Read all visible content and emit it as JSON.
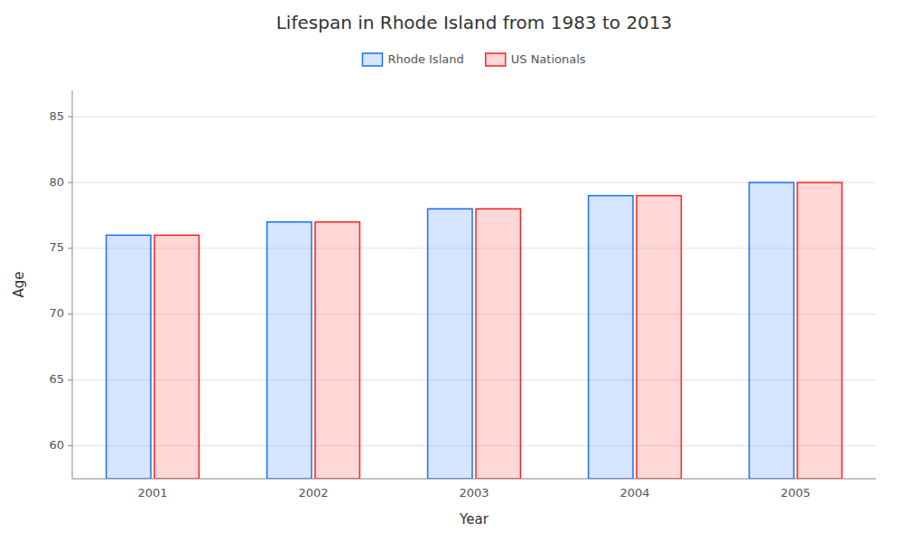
{
  "chart_data": {
    "type": "bar",
    "title": "Lifespan in Rhode Island from 1983 to 2013",
    "xlabel": "Year",
    "ylabel": "Age",
    "categories": [
      "2001",
      "2002",
      "2003",
      "2004",
      "2005"
    ],
    "series": [
      {
        "name": "Rhode Island",
        "color": "#1a6eff",
        "values": [
          76,
          77,
          78,
          79,
          80
        ]
      },
      {
        "name": "US Nationals",
        "color": "#ff2020",
        "values": [
          76,
          77,
          78,
          79,
          80
        ]
      }
    ],
    "ylim": [
      57.5,
      87
    ],
    "yticks": [
      60,
      65,
      70,
      75,
      80,
      85
    ],
    "grid": true,
    "legend": "top"
  }
}
